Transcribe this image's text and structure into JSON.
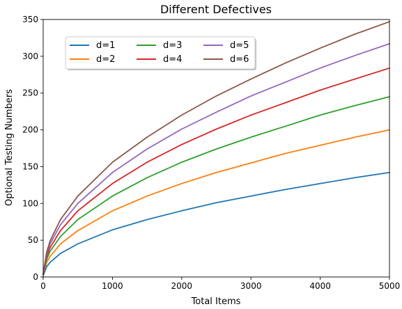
{
  "chart_data": {
    "type": "line",
    "title": "Different Defectives",
    "xlabel": "Total Items",
    "ylabel": "Optional Testing Numbers",
    "xlim": [
      0,
      5000
    ],
    "ylim": [
      0,
      350
    ],
    "x_ticks": [
      0,
      1000,
      2000,
      3000,
      4000,
      5000
    ],
    "y_ticks": [
      0,
      50,
      100,
      150,
      200,
      250,
      300,
      350
    ],
    "grid": false,
    "legend": {
      "placement": "upper-left",
      "columns": 3
    },
    "x": [
      1,
      50,
      100,
      250,
      500,
      1000,
      1500,
      2000,
      2500,
      3000,
      3500,
      4000,
      4500,
      5000
    ],
    "series": [
      {
        "name": "d=1",
        "color": "#1f77b4",
        "values": [
          2,
          14,
          20,
          32,
          45,
          64,
          78,
          90,
          101,
          110,
          119,
          127,
          135,
          142
        ]
      },
      {
        "name": "d=2",
        "color": "#ff7f0e",
        "values": [
          3,
          20,
          28,
          45,
          63,
          90,
          110,
          127,
          142,
          155,
          168,
          179,
          190,
          200
        ]
      },
      {
        "name": "d=3",
        "color": "#2ca02c",
        "values": [
          3,
          24,
          35,
          55,
          78,
          110,
          135,
          156,
          174,
          190,
          205,
          220,
          233,
          245
        ]
      },
      {
        "name": "d=4",
        "color": "#d62728",
        "values": [
          4,
          28,
          40,
          63,
          90,
          127,
          156,
          180,
          201,
          220,
          237,
          254,
          269,
          284
        ]
      },
      {
        "name": "d=5",
        "color": "#9467bd",
        "values": [
          4,
          31,
          45,
          71,
          100,
          142,
          174,
          201,
          224,
          246,
          265,
          284,
          301,
          317
        ]
      },
      {
        "name": "d=6",
        "color": "#8c564b",
        "values": [
          5,
          34,
          49,
          78,
          110,
          156,
          190,
          220,
          246,
          269,
          291,
          311,
          330,
          347
        ]
      }
    ]
  }
}
